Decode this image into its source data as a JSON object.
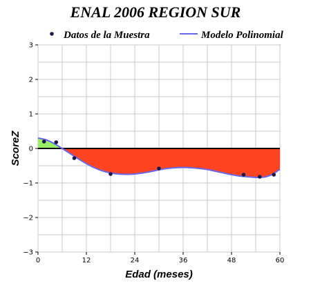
{
  "chart_data": {
    "type": "line",
    "title": "ENAL 2006 REGION SUR",
    "xlabel": "Edad (meses)",
    "ylabel": "ScoreZ",
    "xlim": [
      0,
      60
    ],
    "ylim": [
      -3,
      3
    ],
    "x_ticks": [
      0,
      12,
      24,
      36,
      48,
      60
    ],
    "y_ticks": [
      -3,
      -2,
      -1,
      0,
      1,
      2,
      3
    ],
    "grid": true,
    "legend_position": "top",
    "series": [
      {
        "name": "Datos de la Muestra",
        "kind": "scatter",
        "color": "#1a1a4d",
        "x": [
          1.5,
          4.5,
          9,
          18,
          30,
          51,
          55,
          58.5
        ],
        "y": [
          0.2,
          0.18,
          -0.28,
          -0.74,
          -0.58,
          -0.76,
          -0.82,
          -0.76
        ]
      },
      {
        "name": "Modelo Polinomial",
        "kind": "line",
        "color": "#6666ee",
        "x": [
          0,
          2,
          4,
          6,
          8,
          10,
          12,
          14,
          16,
          18,
          20,
          22,
          24,
          26,
          28,
          30,
          32,
          34,
          36,
          38,
          40,
          42,
          44,
          46,
          48,
          50,
          52,
          54,
          56,
          58,
          60
        ],
        "y": [
          0.3,
          0.25,
          0.14,
          0.0,
          -0.15,
          -0.3,
          -0.44,
          -0.56,
          -0.65,
          -0.71,
          -0.74,
          -0.75,
          -0.74,
          -0.71,
          -0.67,
          -0.62,
          -0.58,
          -0.56,
          -0.55,
          -0.56,
          -0.58,
          -0.61,
          -0.66,
          -0.71,
          -0.76,
          -0.8,
          -0.82,
          -0.84,
          -0.83,
          -0.76,
          -0.6
        ]
      }
    ],
    "fill": {
      "positive_color": "#99ee66",
      "negative_color": "#ff4422"
    },
    "zero_line_color": "#000000"
  }
}
